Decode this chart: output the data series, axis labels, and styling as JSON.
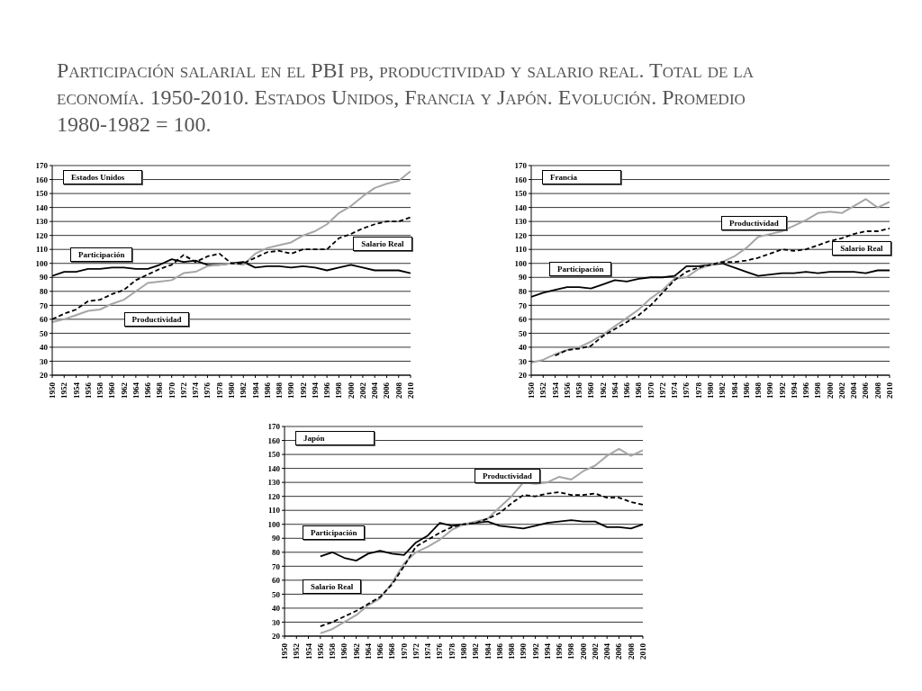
{
  "chart_data": [
    {
      "type": "line",
      "title": "Estados Unidos",
      "annotations": [
        "Participación salarial en el PBI pb, productividad y salario real. Total de la economía. 1950-2010. Estados Unidos, Francia y Japón. Evolución. Promedio 1980-1982 = 100."
      ],
      "x": [
        1950,
        1952,
        1954,
        1956,
        1958,
        1960,
        1962,
        1964,
        1966,
        1968,
        1970,
        1972,
        1974,
        1976,
        1978,
        1980,
        1982,
        1984,
        1986,
        1988,
        1990,
        1992,
        1994,
        1996,
        1998,
        2000,
        2002,
        2004,
        2006,
        2008,
        2010
      ],
      "series": [
        {
          "name": "Participación",
          "color": "#000000",
          "line_style": "solid",
          "values": [
            91,
            94,
            94,
            96,
            96,
            97,
            97,
            96,
            96,
            99,
            103,
            101,
            102,
            99,
            99,
            100,
            101,
            97,
            98,
            98,
            97,
            98,
            97,
            95,
            97,
            99,
            97,
            95,
            95,
            95,
            93
          ]
        },
        {
          "name": "Productividad",
          "color": "#a6a6a6",
          "line_style": "solid",
          "values": [
            58,
            60,
            63,
            66,
            67,
            71,
            74,
            80,
            86,
            87,
            88,
            93,
            94,
            98,
            99,
            100,
            99,
            107,
            111,
            113,
            115,
            120,
            123,
            128,
            136,
            141,
            148,
            154,
            157,
            159,
            166
          ]
        },
        {
          "name": "Salario Real",
          "color": "#000000",
          "line_style": "dashed",
          "values": [
            60,
            64,
            67,
            73,
            74,
            78,
            81,
            88,
            92,
            96,
            99,
            106,
            101,
            105,
            107,
            100,
            100,
            104,
            108,
            109,
            107,
            110,
            110,
            110,
            118,
            121,
            125,
            128,
            130,
            130,
            133
          ]
        }
      ],
      "xlim": [
        1950,
        2010
      ],
      "xticks": [
        1950,
        1952,
        1954,
        1956,
        1958,
        1960,
        1962,
        1964,
        1966,
        1968,
        1970,
        1972,
        1974,
        1976,
        1978,
        1980,
        1982,
        1984,
        1986,
        1988,
        1990,
        1992,
        1994,
        1996,
        1998,
        2000,
        2002,
        2004,
        2006,
        2008,
        2010
      ],
      "ylim": [
        20,
        170
      ],
      "yticks": [
        20,
        30,
        40,
        50,
        60,
        70,
        80,
        90,
        100,
        110,
        120,
        130,
        140,
        150,
        160,
        170
      ],
      "grid": "y",
      "legend": false,
      "marker": "none"
    },
    {
      "type": "line",
      "title": "Francia",
      "x": [
        1950,
        1952,
        1954,
        1956,
        1958,
        1960,
        1962,
        1964,
        1966,
        1968,
        1970,
        1972,
        1974,
        1976,
        1978,
        1980,
        1982,
        1984,
        1986,
        1988,
        1990,
        1992,
        1994,
        1996,
        1998,
        2000,
        2002,
        2004,
        2006,
        2008,
        2010
      ],
      "series": [
        {
          "name": "Participación",
          "color": "#000000",
          "line_style": "solid",
          "values": [
            76,
            79,
            81,
            83,
            83,
            82,
            85,
            88,
            87,
            89,
            90,
            90,
            91,
            98,
            98,
            99,
            100,
            97,
            94,
            91,
            92,
            93,
            93,
            94,
            93,
            94,
            94,
            94,
            93,
            95,
            95
          ]
        },
        {
          "name": "Productividad",
          "color": "#a6a6a6",
          "line_style": "solid",
          "values": [
            29,
            31,
            35,
            38,
            40,
            44,
            49,
            55,
            61,
            67,
            75,
            81,
            89,
            90,
            96,
            99,
            101,
            105,
            111,
            119,
            121,
            123,
            127,
            131,
            136,
            137,
            136,
            141,
            146,
            140,
            144
          ]
        },
        {
          "name": "Salario Real",
          "color": "#000000",
          "line_style": "dashed",
          "values": [
            null,
            null,
            34,
            38,
            39,
            41,
            48,
            53,
            58,
            63,
            70,
            79,
            88,
            94,
            97,
            99,
            101,
            101,
            102,
            104,
            107,
            110,
            109,
            110,
            113,
            116,
            118,
            121,
            123,
            123,
            125
          ]
        }
      ],
      "xlim": [
        1950,
        2010
      ],
      "xticks": [
        1950,
        1952,
        1954,
        1956,
        1958,
        1960,
        1962,
        1964,
        1966,
        1968,
        1970,
        1972,
        1974,
        1976,
        1978,
        1980,
        1982,
        1984,
        1986,
        1988,
        1990,
        1992,
        1994,
        1996,
        1998,
        2000,
        2002,
        2004,
        2006,
        2008,
        2010
      ],
      "ylim": [
        20,
        170
      ],
      "yticks": [
        20,
        30,
        40,
        50,
        60,
        70,
        80,
        90,
        100,
        110,
        120,
        130,
        140,
        150,
        160,
        170
      ],
      "grid": "y",
      "legend": false,
      "marker": "none"
    },
    {
      "type": "line",
      "title": "Japón",
      "x": [
        1956,
        1958,
        1960,
        1962,
        1964,
        1966,
        1968,
        1970,
        1972,
        1974,
        1976,
        1978,
        1980,
        1982,
        1984,
        1986,
        1988,
        1990,
        1992,
        1994,
        1996,
        1998,
        2000,
        2002,
        2004,
        2006,
        2008,
        2010
      ],
      "series": [
        {
          "name": "Participación",
          "color": "#000000",
          "line_style": "solid",
          "values": [
            77,
            80,
            76,
            74,
            79,
            81,
            79,
            78,
            87,
            92,
            101,
            99,
            100,
            101,
            102,
            99,
            98,
            97,
            99,
            101,
            102,
            103,
            102,
            102,
            98,
            98,
            97,
            100
          ]
        },
        {
          "name": "Productividad",
          "color": "#a6a6a6",
          "line_style": "solid",
          "values": [
            22,
            25,
            30,
            35,
            42,
            47,
            58,
            72,
            80,
            84,
            89,
            96,
            100,
            102,
            104,
            112,
            120,
            130,
            129,
            130,
            134,
            132,
            138,
            142,
            149,
            154,
            149,
            153
          ]
        },
        {
          "name": "Salario Real",
          "color": "#000000",
          "line_style": "dashed",
          "values": [
            27,
            30,
            34,
            38,
            43,
            48,
            57,
            70,
            84,
            89,
            94,
            98,
            100,
            101,
            104,
            108,
            115,
            121,
            120,
            122,
            123,
            121,
            121,
            122,
            119,
            119,
            116,
            114
          ]
        }
      ],
      "xlim": [
        1950,
        2010
      ],
      "xticks": [
        1950,
        1952,
        1954,
        1956,
        1958,
        1960,
        1962,
        1964,
        1966,
        1968,
        1970,
        1972,
        1974,
        1976,
        1978,
        1980,
        1982,
        1984,
        1986,
        1988,
        1990,
        1992,
        1994,
        1996,
        1998,
        2000,
        2002,
        2004,
        2006,
        2008,
        2010
      ],
      "ylim": [
        20,
        170
      ],
      "yticks": [
        20,
        30,
        40,
        50,
        60,
        70,
        80,
        90,
        100,
        110,
        120,
        130,
        140,
        150,
        160,
        170
      ],
      "grid": "y",
      "legend": false,
      "marker": "none"
    }
  ]
}
